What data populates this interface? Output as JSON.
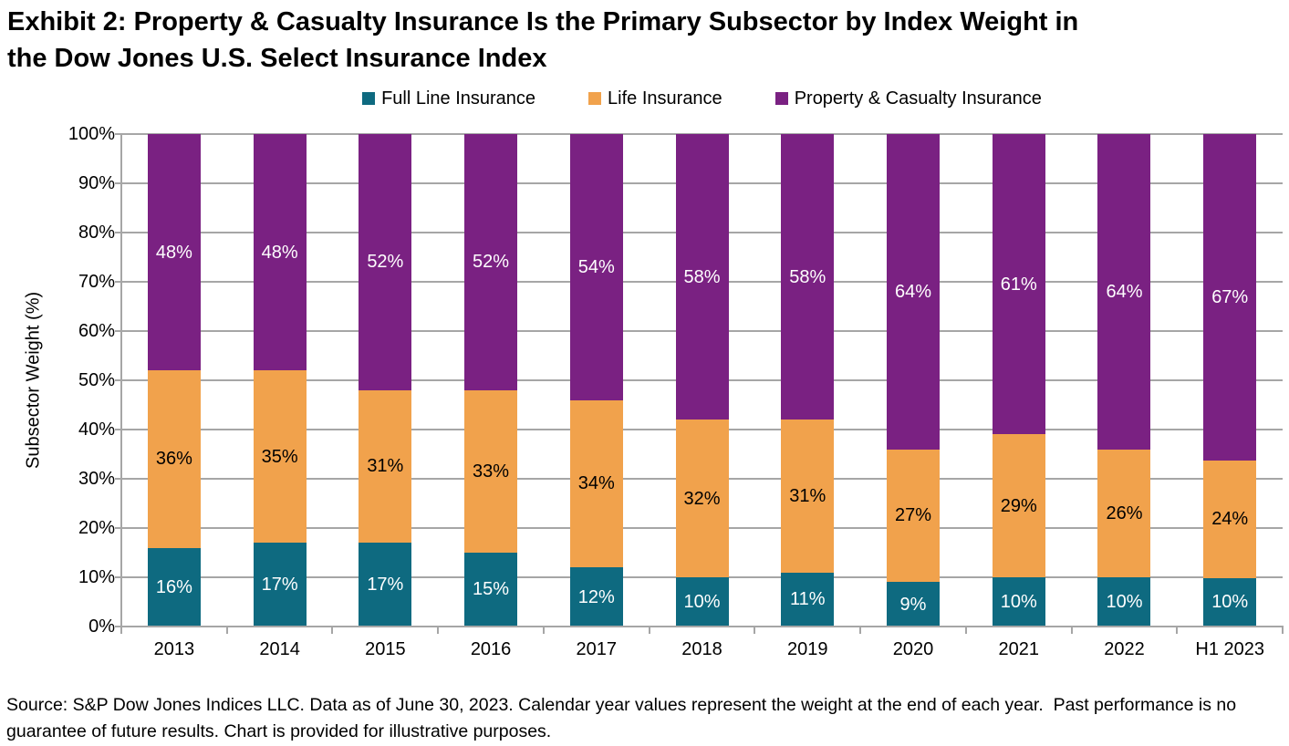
{
  "title": {
    "line1": "Exhibit 2: Property & Casualty Insurance Is the Primary Subsector by Index Weight in",
    "line2": "the Dow Jones U.S. Select Insurance Index"
  },
  "y_axis": {
    "title": "Subsector Weight (%)",
    "ticks": [
      "0%",
      "10%",
      "20%",
      "30%",
      "40%",
      "50%",
      "60%",
      "70%",
      "80%",
      "90%",
      "100%"
    ]
  },
  "source_text": "Source: S&P Dow Jones Indices LLC. Data as of June 30, 2023. Calendar year values represent the weight at the end of each year.  Past performance is no guarantee of future results. Chart is provided for illustrative purposes.",
  "colors": {
    "full_line_insurance": "#0E6A80",
    "life_insurance": "#F1A24C",
    "property_casualty_insurance": "#7A2182",
    "gridline": "#A6A6A6",
    "axis": "#A6A6A6",
    "label_on_dark": "#FFFFFF",
    "label_on_light": "#000000",
    "title_text": "#000000"
  },
  "chart_data": {
    "type": "bar",
    "stacked": true,
    "unit": "%",
    "ylim": [
      0,
      100
    ],
    "grid": "horizontal gridlines every 10%",
    "legend_position": "top-center",
    "categories": [
      "2013",
      "2014",
      "2015",
      "2016",
      "2017",
      "2018",
      "2019",
      "2020",
      "2021",
      "2022",
      "H1 2023"
    ],
    "series": [
      {
        "name": "Full Line Insurance",
        "color": "#0E6A80",
        "label_color": "#FFFFFF",
        "values": [
          16,
          17,
          17,
          15,
          12,
          10,
          11,
          9,
          10,
          10,
          10
        ]
      },
      {
        "name": "Life Insurance",
        "color": "#F1A24C",
        "label_color": "#000000",
        "values": [
          36,
          35,
          31,
          33,
          34,
          32,
          31,
          27,
          29,
          26,
          24
        ]
      },
      {
        "name": "Property & Casualty Insurance",
        "color": "#7A2182",
        "label_color": "#FFFFFF",
        "values": [
          48,
          48,
          52,
          52,
          54,
          58,
          58,
          64,
          61,
          64,
          67
        ]
      }
    ]
  }
}
